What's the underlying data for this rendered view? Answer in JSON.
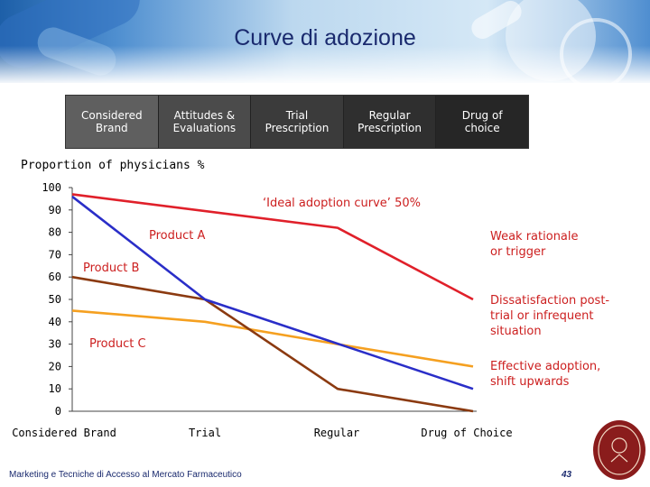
{
  "title": "Curve di adozione",
  "stages": [
    {
      "label": "Considered\nBrand",
      "color": "#5f5f5f"
    },
    {
      "label": "Attitudes &\nEvaluations",
      "color": "#4b4b4b"
    },
    {
      "label": "Trial\nPrescription",
      "color": "#3b3b3b"
    },
    {
      "label": "Regular\nPrescription",
      "color": "#2f2f2f"
    },
    {
      "label": "Drug of\nchoice",
      "color": "#262626"
    }
  ],
  "footer": "Marketing e Tecniche di Accesso al Mercato Farmaceutico",
  "page_number": "43",
  "chart_data": {
    "type": "line",
    "title": "Proportion of physicians %",
    "x": [
      "Considered Brand",
      "Trial",
      "Regular",
      "Drug of Choice"
    ],
    "ylim": [
      0,
      100
    ],
    "yticks": [
      0,
      10,
      20,
      30,
      40,
      50,
      60,
      70,
      80,
      90,
      100
    ],
    "series": [
      {
        "name": "'Ideal adoption curve' 50%",
        "color": "#e0202a",
        "values": [
          97,
          null,
          82,
          50
        ]
      },
      {
        "name": "Product A",
        "color": "#2a2ec8",
        "values": [
          96,
          50,
          null,
          10
        ]
      },
      {
        "name": "Product B",
        "color": "#8b3a10",
        "values": [
          60,
          50,
          10,
          0
        ]
      },
      {
        "name": "Product C",
        "color": "#f5a020",
        "values": [
          45,
          40,
          30,
          20
        ]
      }
    ],
    "annotations": [
      {
        "text": "‘Ideal adoption curve’ 50%",
        "color": "#cc1f1f"
      },
      {
        "text": "Product A",
        "color": "#cc1f1f"
      },
      {
        "text": "Product B",
        "color": "#cc1f1f"
      },
      {
        "text": "Product C",
        "color": "#cc1f1f"
      },
      {
        "text": "Weak rationale\nor trigger",
        "color": "#cc1f1f"
      },
      {
        "text": "Dissatisfaction post-\ntrial or infrequent\nsituation",
        "color": "#cc1f1f"
      },
      {
        "text": "Effective adoption,\nshift upwards",
        "color": "#cc1f1f"
      }
    ]
  }
}
